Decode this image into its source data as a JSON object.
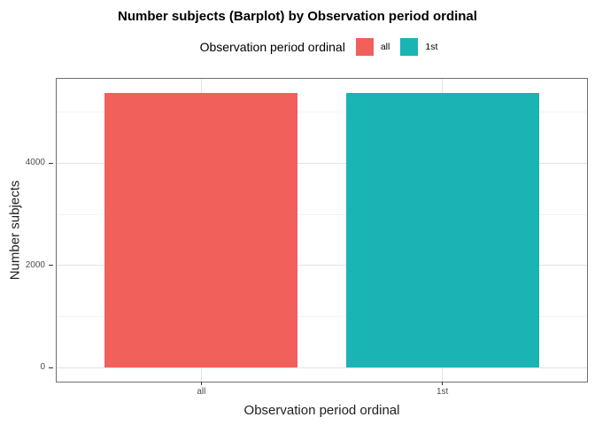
{
  "title": "Number subjects (Barplot) by Observation period ordinal",
  "legend": {
    "title": "Observation period ordinal",
    "entries": [
      {
        "label": "all",
        "color": "#F2605C"
      },
      {
        "label": "1st",
        "color": "#1BB4B4"
      }
    ]
  },
  "chart_data": {
    "type": "bar",
    "title": "Number subjects (Barplot) by Observation period ordinal",
    "categories": [
      "all",
      "1st"
    ],
    "values": [
      5380,
      5380
    ],
    "bar_colors": [
      "#F2605C",
      "#1BB4B4"
    ],
    "xlabel": "Observation period ordinal",
    "ylabel": "Number subjects",
    "y_ticks": [
      0,
      2000,
      4000
    ],
    "y_minor_ticks": [
      1000,
      3000,
      5000
    ],
    "ylim": [
      0,
      5650
    ],
    "bar_rel_width": 0.8,
    "legend_position": "top",
    "grid": true,
    "panel_border_color": "#6F6F6F",
    "major_grid_color": "#E3E3E3",
    "minor_grid_color": "#F3F3F3"
  }
}
